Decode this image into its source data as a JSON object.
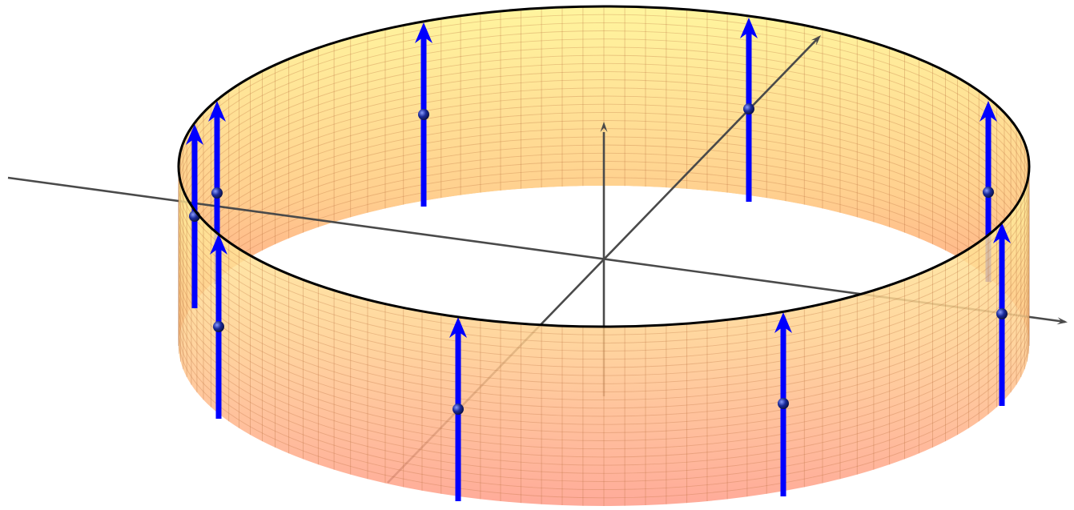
{
  "figure": {
    "kind": "3d-cylindrical-band",
    "surface": {
      "colormap": [
        "#fff59e",
        "#ff9a86"
      ],
      "mesh_color": "#b86d3c",
      "rim_color": "#000000"
    },
    "axes": {
      "color": "#4a4a4a",
      "count": 3
    },
    "vectors": {
      "color": "#0000ff",
      "dot_color": "#1a2a8a",
      "direction": "up",
      "count": 10
    }
  }
}
